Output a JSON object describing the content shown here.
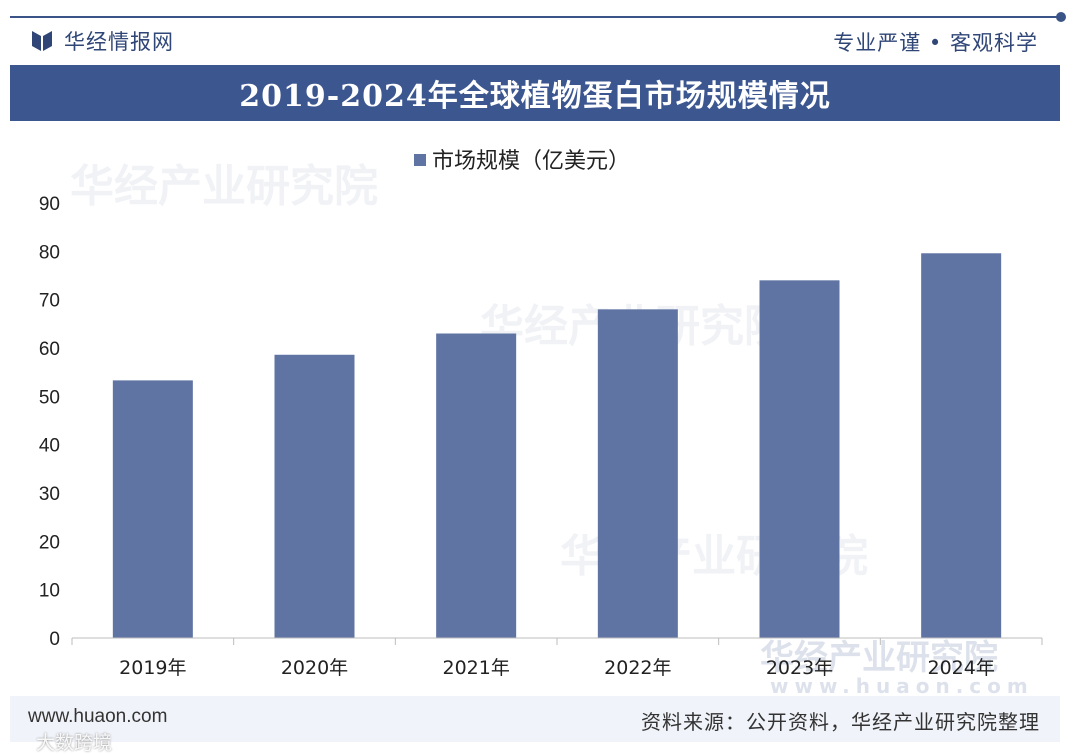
{
  "header": {
    "brand": "华经情报网",
    "slogan": "专业严谨 • 客观科学",
    "title": "2019-2024年全球植物蛋白市场规模情况"
  },
  "footer": {
    "website": "www.huaon.com",
    "source": "资料来源：公开资料，华经产业研究院整理"
  },
  "watermark": {
    "text": "华经产业研究院",
    "url": "www.huaon.com"
  },
  "corner_mark": "大数跨境",
  "colors": {
    "bar": "#5f74a3",
    "title_bg": "#3c5690",
    "brand": "#2f4677"
  },
  "chart_data": {
    "type": "bar",
    "title": "2019-2024年全球植物蛋白市场规模情况",
    "categories": [
      "2019年",
      "2020年",
      "2021年",
      "2022年",
      "2023年",
      "2024年"
    ],
    "series": [
      {
        "name": "市场规模（亿美元）",
        "values": [
          53.3,
          58.6,
          63,
          68,
          74,
          79.6
        ]
      }
    ],
    "xlabel": "",
    "ylabel": "",
    "ylim": [
      0,
      90
    ],
    "yticks": [
      0,
      10,
      20,
      30,
      40,
      50,
      60,
      70,
      80,
      90
    ],
    "legend_position": "top-center",
    "grid": false
  }
}
